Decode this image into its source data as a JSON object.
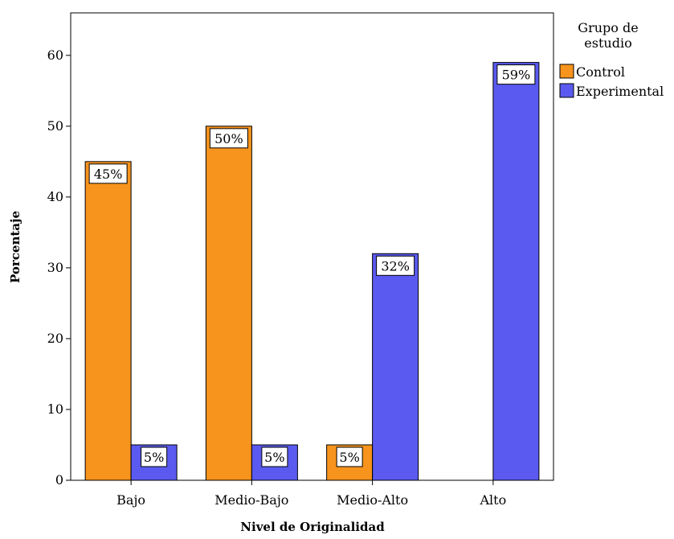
{
  "chart_data": {
    "type": "bar",
    "xlabel": "Nivel de Originalidad",
    "ylabel": "Porcentaje",
    "categories": [
      "Bajo",
      "Medio-Bajo",
      "Medio-Alto",
      "Alto"
    ],
    "ylim": [
      0,
      66
    ],
    "yticks": [
      0,
      10,
      20,
      30,
      40,
      50,
      60
    ],
    "grid": false,
    "legend": {
      "title_lines": [
        "Grupo de",
        "estudio"
      ],
      "placement": "right-top-outside"
    },
    "series": [
      {
        "name": "Control",
        "color": "#f7941d",
        "values": [
          45,
          50,
          5,
          null
        ],
        "labels": [
          "45%",
          "50%",
          "5%",
          null
        ]
      },
      {
        "name": "Experimental",
        "color": "#5a5af0",
        "values": [
          5,
          5,
          32,
          59
        ],
        "labels": [
          "5%",
          "5%",
          "32%",
          "59%"
        ]
      }
    ]
  }
}
